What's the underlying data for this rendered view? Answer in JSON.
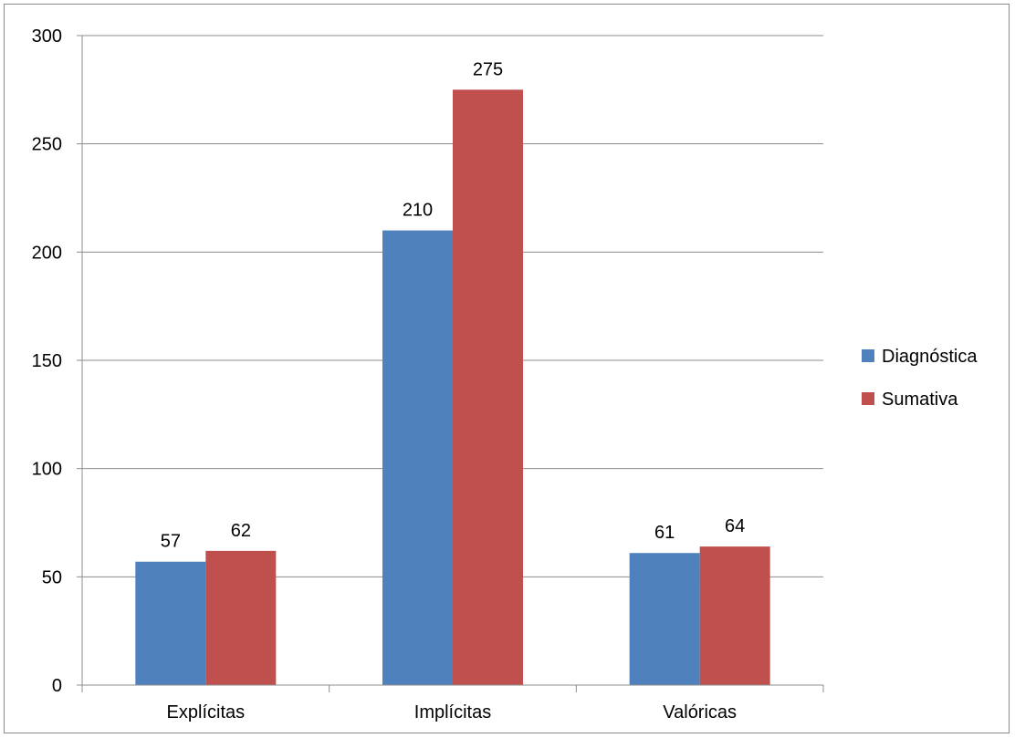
{
  "chart_data": {
    "type": "bar",
    "categories": [
      "Explícitas",
      "Implícitas",
      "Valóricas"
    ],
    "series": [
      {
        "name": "Diagnóstica",
        "values": [
          57,
          210,
          61
        ],
        "color": "#4f81bd"
      },
      {
        "name": "Sumativa",
        "values": [
          62,
          275,
          64
        ],
        "color": "#c0504d"
      }
    ],
    "ylim": [
      0,
      300
    ],
    "yticks": [
      0,
      50,
      100,
      150,
      200,
      250,
      300
    ],
    "ytick_labels": [
      "0",
      "50",
      "100",
      "150",
      "200",
      "250",
      "300"
    ],
    "grid": true,
    "legend_position": "right",
    "title": "",
    "xlabel": "",
    "ylabel": ""
  }
}
